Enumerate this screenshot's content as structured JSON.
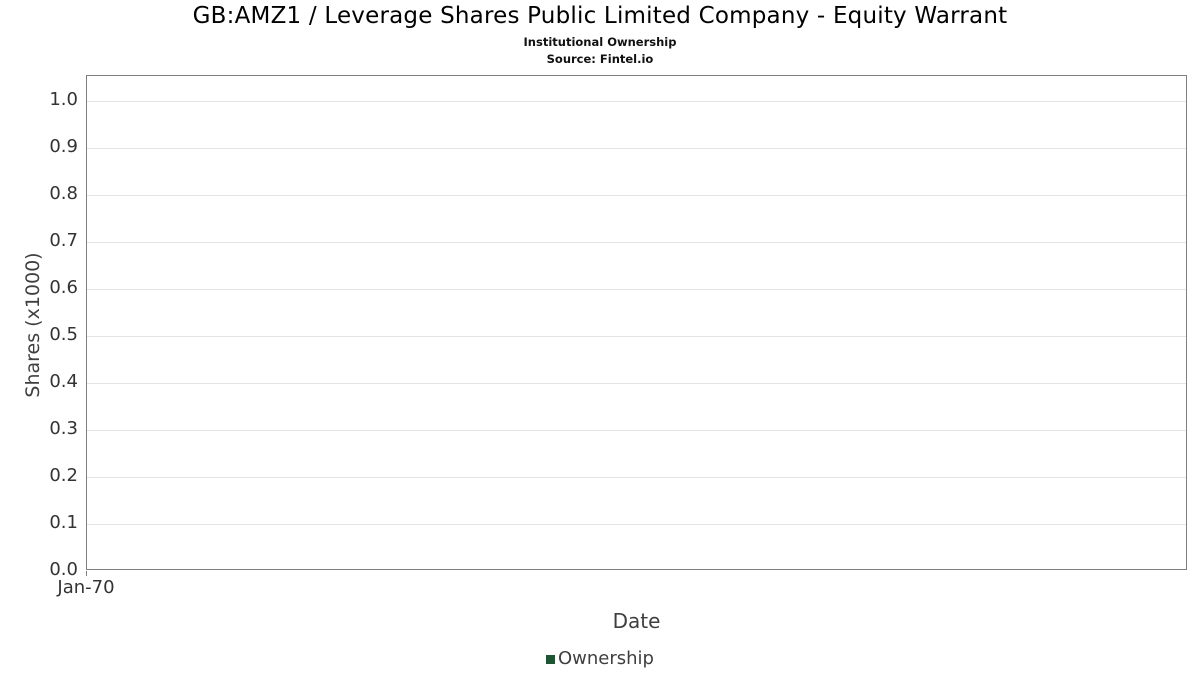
{
  "header": {
    "title": "GB:AMZ1 / Leverage Shares Public Limited Company - Equity Warrant",
    "subtitle": "Institutional Ownership",
    "source": "Source: Fintel.io"
  },
  "chart_data": {
    "type": "line",
    "title": "GB:AMZ1 / Leverage Shares Public Limited Company - Equity Warrant",
    "subtitle": "Institutional Ownership",
    "source": "Source: Fintel.io",
    "xlabel": "Date",
    "ylabel": "Shares (x1000)",
    "x_ticks": [
      "Jan-70"
    ],
    "y_ticks": [
      0.0,
      0.1,
      0.2,
      0.3,
      0.4,
      0.5,
      0.6,
      0.7,
      0.8,
      0.9,
      1.0
    ],
    "ylim": [
      0,
      1.053
    ],
    "grid": "horizontal",
    "legend_position": "bottom",
    "series": [
      {
        "name": "Ownership",
        "color": "#1d5632",
        "x": [],
        "values": []
      }
    ],
    "colors": {
      "gridline": "#e4e4e4",
      "plot_border": "#7f7f7f",
      "tick_text": "#333333",
      "axis_title_text": "#3f3f3f"
    }
  }
}
